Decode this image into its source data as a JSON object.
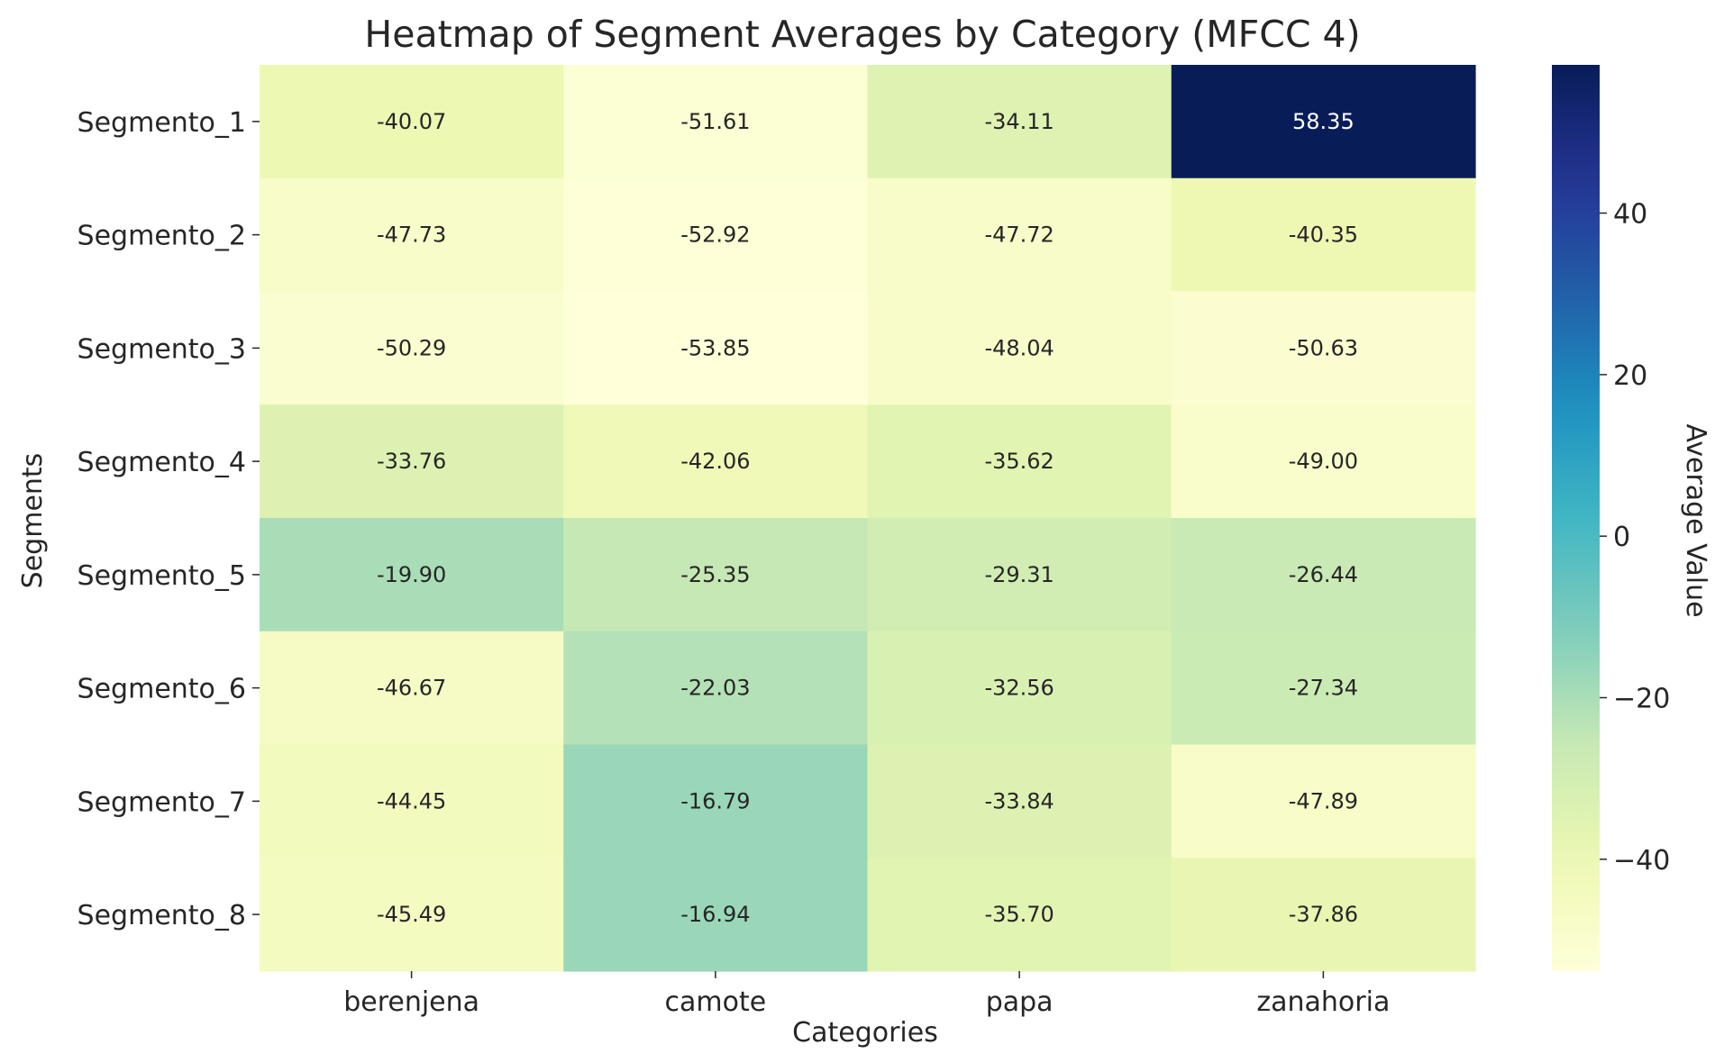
{
  "chart_data": {
    "type": "heatmap",
    "title": "Heatmap of Segment Averages by Category (MFCC 4)",
    "xlabel": "Categories",
    "ylabel": "Segments",
    "colorbar_label": "Average Value",
    "colormap": "YlGnBu",
    "columns": [
      "berenjena",
      "camote",
      "papa",
      "zanahoria"
    ],
    "rows": [
      "Segmento_1",
      "Segmento_2",
      "Segmento_3",
      "Segmento_4",
      "Segmento_5",
      "Segmento_6",
      "Segmento_7",
      "Segmento_8"
    ],
    "values": [
      [
        -40.07,
        -51.61,
        -34.11,
        58.35
      ],
      [
        -47.73,
        -52.92,
        -47.72,
        -40.35
      ],
      [
        -50.29,
        -53.85,
        -48.04,
        -50.63
      ],
      [
        -33.76,
        -42.06,
        -35.62,
        -49.0
      ],
      [
        -19.9,
        -25.35,
        -29.31,
        -26.44
      ],
      [
        -46.67,
        -22.03,
        -32.56,
        -27.34
      ],
      [
        -44.45,
        -16.79,
        -33.84,
        -47.89
      ],
      [
        -45.49,
        -16.94,
        -35.7,
        -37.86
      ]
    ],
    "value_range": [
      -53.85,
      58.35
    ],
    "colorbar_ticks": [
      -40,
      -20,
      0,
      20,
      40
    ],
    "colorbar_tick_labels": [
      "−40",
      "−20",
      "0",
      "20",
      "40"
    ]
  }
}
